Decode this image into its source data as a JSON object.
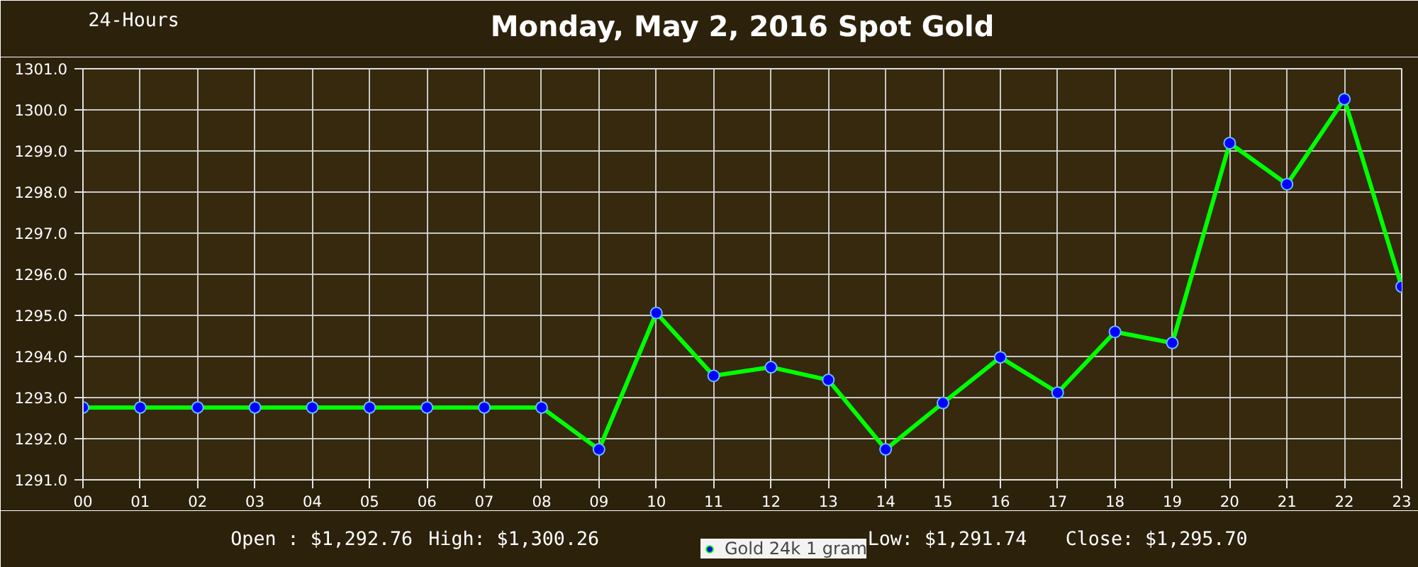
{
  "chart_data": {
    "type": "line",
    "title": "Monday, May 2, 2016 Spot Gold",
    "annotations": [
      "24-Hours",
      "Open : $1,292.76",
      "High: $1,300.26",
      "Low: $1,291.74",
      "Close: $1,295.70"
    ],
    "categories": [
      "00",
      "01",
      "02",
      "03",
      "04",
      "05",
      "06",
      "07",
      "08",
      "09",
      "10",
      "11",
      "12",
      "13",
      "14",
      "15",
      "16",
      "17",
      "18",
      "19",
      "20",
      "21",
      "22",
      "23"
    ],
    "series": [
      {
        "name": "Gold 24k 1 gram",
        "color": "#00ff00",
        "values": [
          1292.76,
          1292.76,
          1292.76,
          1292.76,
          1292.76,
          1292.76,
          1292.76,
          1292.76,
          1292.76,
          1291.74,
          1295.06,
          1293.53,
          1293.74,
          1293.43,
          1291.74,
          1292.87,
          1293.98,
          1293.12,
          1294.6,
          1294.33,
          1299.19,
          1298.19,
          1300.26,
          1295.7
        ]
      }
    ],
    "ylim": [
      1291.0,
      1301.0
    ],
    "yticks": [
      {
        "value": 1291,
        "label": "1291.0"
      },
      {
        "value": 1292,
        "label": "1292.0"
      },
      {
        "value": 1293,
        "label": "1293.0"
      },
      {
        "value": 1294,
        "label": "1294.0"
      },
      {
        "value": 1295,
        "label": "1295.0"
      },
      {
        "value": 1296,
        "label": "1296.0"
      },
      {
        "value": 1297,
        "label": "1297.0"
      },
      {
        "value": 1298,
        "label": "1298.0"
      },
      {
        "value": 1299,
        "label": "1299.0"
      },
      {
        "value": 1300,
        "label": "1300.0"
      },
      {
        "value": 1301,
        "label": "1301.0"
      }
    ],
    "grid": true,
    "legend": "bottom",
    "marker": "circle",
    "line_style": "solid"
  }
}
